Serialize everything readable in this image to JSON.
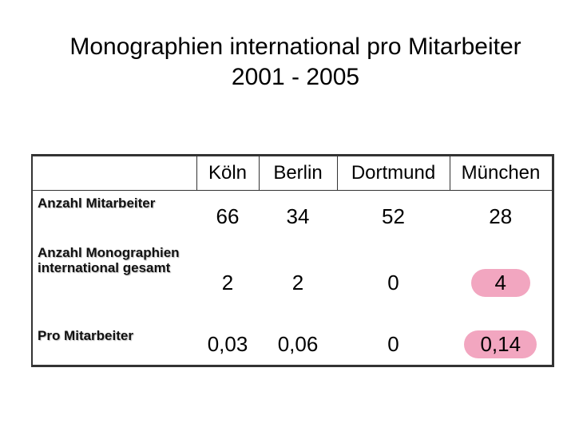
{
  "title": {
    "line1": "Monographien international pro Mitarbeiter",
    "line2": "2001 - 2005"
  },
  "table": {
    "columns": [
      "Köln",
      "Berlin",
      "Dortmund",
      "München"
    ],
    "rows": [
      {
        "label": "Anzahl Mitarbeiter",
        "values": [
          "66",
          "34",
          "52",
          "28"
        ]
      },
      {
        "label": "Anzahl Monographien international gesamt",
        "values": [
          "2",
          "2",
          "0",
          "4"
        ]
      },
      {
        "label": "Pro Mitarbeiter",
        "values": [
          "0,03",
          "0,06",
          "0",
          "0,14"
        ]
      }
    ],
    "highlight_color": "#f2a6c0"
  }
}
